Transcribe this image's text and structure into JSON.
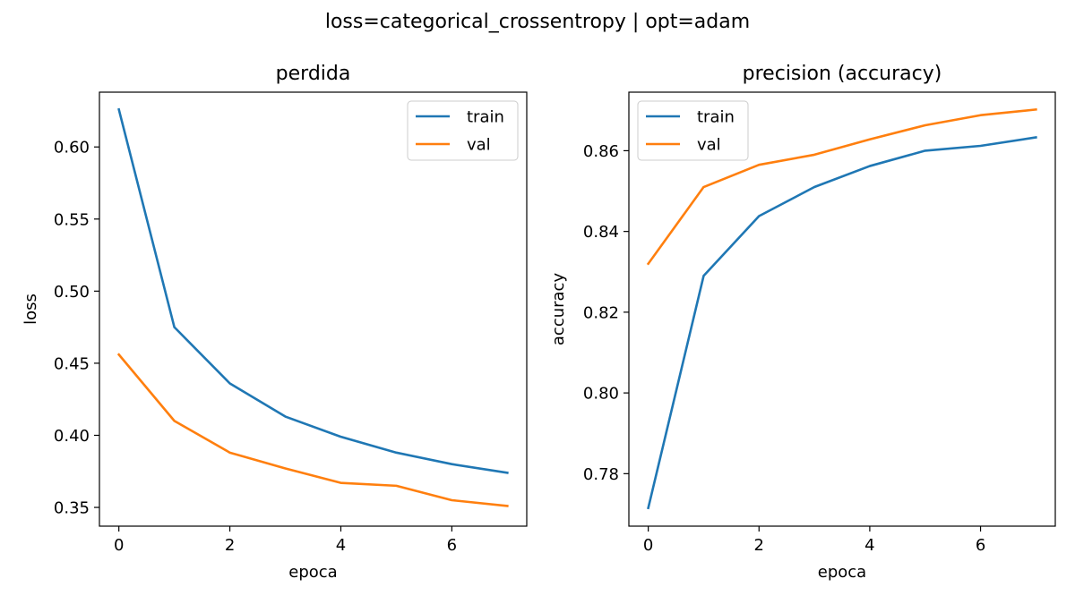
{
  "figure": {
    "suptitle": "loss=categorical_crossentropy | opt=adam"
  },
  "chart_data": [
    {
      "type": "line",
      "title": "perdida",
      "xlabel": "epoca",
      "ylabel": "loss",
      "x": [
        0,
        1,
        2,
        3,
        4,
        5,
        6,
        7
      ],
      "xlim": [
        -0.35,
        7.35
      ],
      "ylim": [
        0.337,
        0.638
      ],
      "xticks": [
        0,
        2,
        4,
        6
      ],
      "xtick_labels": [
        "0",
        "2",
        "4",
        "6"
      ],
      "yticks": [
        0.35,
        0.4,
        0.45,
        0.5,
        0.55,
        0.6
      ],
      "ytick_labels": [
        "0.35",
        "0.40",
        "0.45",
        "0.50",
        "0.55",
        "0.60"
      ],
      "grid": false,
      "legend_position": "upper right",
      "series": [
        {
          "name": "train",
          "color": "#1f77b4",
          "values": [
            0.626,
            0.475,
            0.436,
            0.413,
            0.399,
            0.388,
            0.38,
            0.374
          ]
        },
        {
          "name": "val",
          "color": "#ff7f0e",
          "values": [
            0.456,
            0.41,
            0.388,
            0.377,
            0.367,
            0.365,
            0.355,
            0.351
          ]
        }
      ]
    },
    {
      "type": "line",
      "title": "precision (accuracy)",
      "xlabel": "epoca",
      "ylabel": "accuracy",
      "x": [
        0,
        1,
        2,
        3,
        4,
        5,
        6,
        7
      ],
      "xlim": [
        -0.35,
        7.35
      ],
      "ylim": [
        0.767,
        0.8745
      ],
      "xticks": [
        0,
        2,
        4,
        6
      ],
      "xtick_labels": [
        "0",
        "2",
        "4",
        "6"
      ],
      "yticks": [
        0.78,
        0.8,
        0.82,
        0.84,
        0.86
      ],
      "ytick_labels": [
        "0.78",
        "0.80",
        "0.82",
        "0.84",
        "0.86"
      ],
      "grid": false,
      "legend_position": "upper left",
      "series": [
        {
          "name": "train",
          "color": "#1f77b4",
          "values": [
            0.7715,
            0.829,
            0.8438,
            0.851,
            0.8562,
            0.86,
            0.8612,
            0.8633
          ]
        },
        {
          "name": "val",
          "color": "#ff7f0e",
          "values": [
            0.832,
            0.851,
            0.8565,
            0.859,
            0.8628,
            0.8663,
            0.8688,
            0.8702
          ]
        }
      ]
    }
  ]
}
